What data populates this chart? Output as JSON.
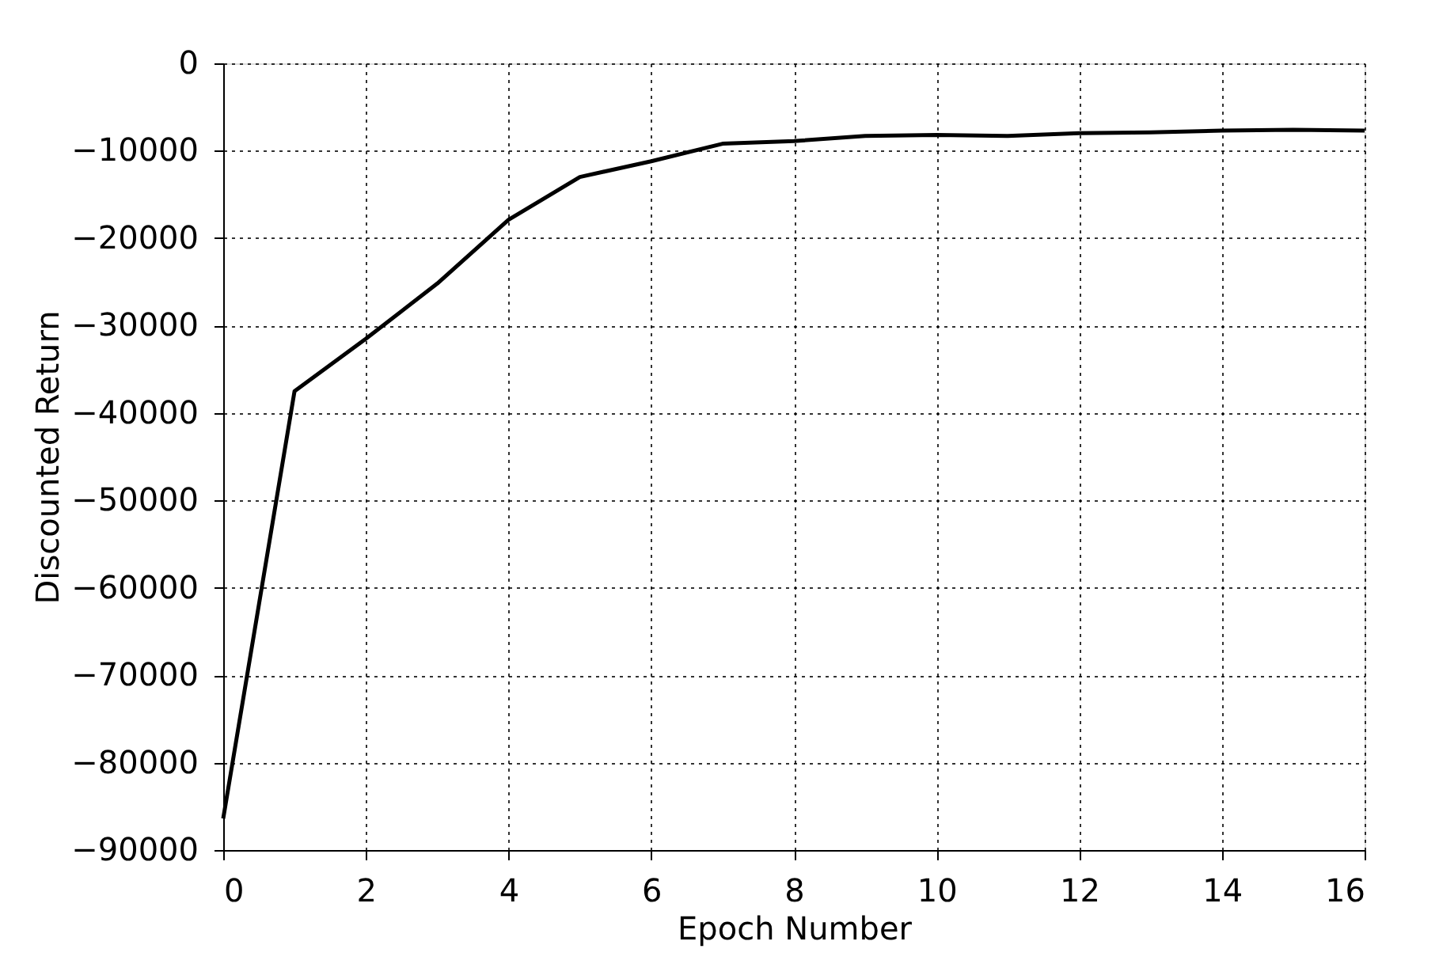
{
  "chart_data": {
    "type": "line",
    "xlabel": "Epoch Number",
    "ylabel": "Discounted Return",
    "x": [
      0,
      1,
      2,
      3,
      4,
      5,
      6,
      7,
      8,
      9,
      10,
      11,
      12,
      13,
      14,
      15,
      16
    ],
    "series": [
      {
        "color": "#000000",
        "values": [
          -86400,
          -37500,
          -31500,
          -25200,
          -17900,
          -13000,
          -11200,
          -9200,
          -8900,
          -8300,
          -8200,
          -8300,
          -8000,
          -7900,
          -7700,
          -7600,
          -7700
        ]
      }
    ],
    "xlim": [
      0,
      16
    ],
    "xticks": [
      0,
      2,
      4,
      6,
      8,
      10,
      12,
      14,
      16
    ],
    "ylim": [
      -90000,
      0
    ],
    "yticks": [
      -90000,
      -80000,
      -70000,
      -60000,
      -50000,
      -40000,
      -30000,
      -20000,
      -10000,
      0
    ],
    "grid": true,
    "marker": "none",
    "line_style": "solid"
  }
}
